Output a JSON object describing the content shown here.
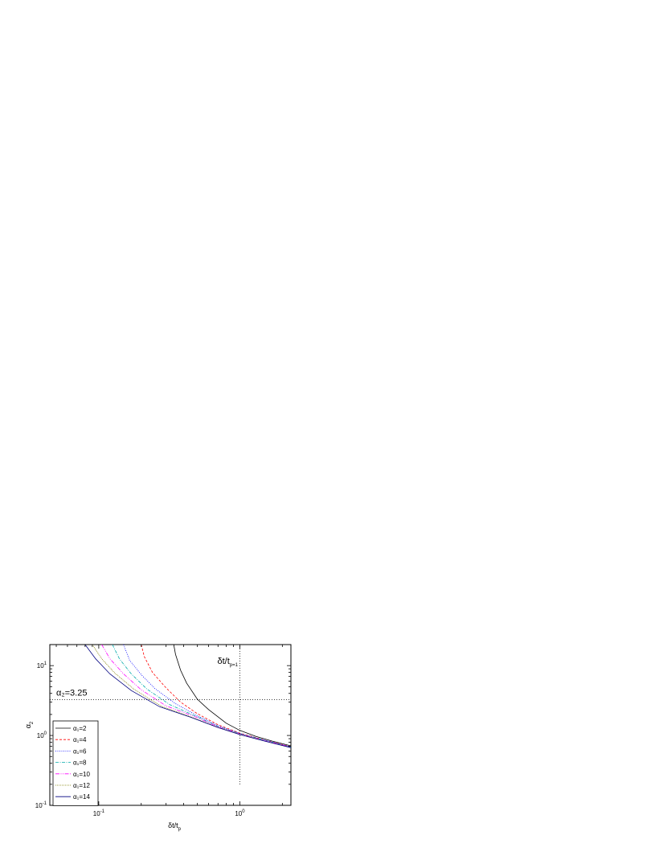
{
  "chart_data": {
    "type": "line",
    "xlabel": "δt/t_p",
    "ylabel": "α_2",
    "x_scale": "log",
    "y_scale": "log",
    "xlim": [
      0.045,
      2.3
    ],
    "ylim": [
      0.1,
      20
    ],
    "x_ticks": [
      {
        "value": 0.1,
        "base": "10",
        "exp": "-1"
      },
      {
        "value": 1,
        "base": "10",
        "exp": "0"
      }
    ],
    "y_ticks": [
      {
        "value": 0.1,
        "base": "10",
        "exp": "-1"
      },
      {
        "value": 1,
        "base": "10",
        "exp": "0"
      },
      {
        "value": 10,
        "base": "10",
        "exp": "1"
      }
    ],
    "grid": false,
    "legend_position": "lower-left",
    "annotations": {
      "hline_label": "α₂=3.25",
      "vline_label": "δt/t_p=1"
    },
    "reference_lines": {
      "horizontal_y": 3.25,
      "vertical_x": 1,
      "vertical_y_range": [
        0.2,
        20
      ]
    },
    "series": [
      {
        "name": "α₁=2",
        "alpha1": 2,
        "color": "#000000",
        "dash": "",
        "x": [
          0.34,
          0.35,
          0.38,
          0.42,
          0.5,
          0.6,
          0.8,
          1.0,
          1.3,
          1.7,
          2.3
        ],
        "y": [
          20,
          14.5,
          8.6,
          5.6,
          3.3,
          2.35,
          1.5,
          1.18,
          0.97,
          0.83,
          0.71
        ]
      },
      {
        "name": "α₁=4",
        "alpha1": 4,
        "color": "#ff0000",
        "dash": "3,2",
        "x": [
          0.2,
          0.21,
          0.24,
          0.3,
          0.38,
          0.5,
          0.7,
          1.0,
          1.5,
          2.3
        ],
        "y": [
          20,
          13.5,
          8.0,
          4.8,
          3.0,
          2.05,
          1.42,
          1.08,
          0.86,
          0.69
        ]
      },
      {
        "name": "α₁=6",
        "alpha1": 6,
        "color": "#0000ff",
        "dash": "1,1.5",
        "x": [
          0.15,
          0.165,
          0.2,
          0.25,
          0.35,
          0.5,
          0.7,
          1.0,
          1.5,
          2.3
        ],
        "y": [
          20,
          12,
          7.4,
          4.7,
          2.85,
          1.92,
          1.38,
          1.07,
          0.86,
          0.69
        ]
      },
      {
        "name": "α₁=8",
        "alpha1": 8,
        "color": "#00aaaa",
        "dash": "4,1.5,1,1.5",
        "x": [
          0.125,
          0.14,
          0.17,
          0.22,
          0.32,
          0.5,
          0.7,
          1.0,
          1.5,
          2.3
        ],
        "y": [
          20,
          12.5,
          7.6,
          4.6,
          2.75,
          1.85,
          1.35,
          1.06,
          0.85,
          0.68
        ]
      },
      {
        "name": "α₁=10",
        "alpha1": 10,
        "color": "#ff00ff",
        "dash": "5,1.5,1,1.5,1,1.5",
        "x": [
          0.105,
          0.12,
          0.15,
          0.2,
          0.3,
          0.5,
          0.7,
          1.0,
          1.5,
          2.3
        ],
        "y": [
          20,
          12.5,
          7.6,
          4.5,
          2.65,
          1.8,
          1.33,
          1.05,
          0.84,
          0.68
        ]
      },
      {
        "name": "α₁=12",
        "alpha1": 12,
        "color": "#808000",
        "dash": "1,1",
        "x": [
          0.09,
          0.105,
          0.13,
          0.18,
          0.28,
          0.45,
          0.7,
          1.0,
          1.5,
          2.3
        ],
        "y": [
          20,
          12.5,
          7.8,
          4.5,
          2.6,
          1.85,
          1.31,
          1.04,
          0.83,
          0.67
        ]
      },
      {
        "name": "α₁=14",
        "alpha1": 14,
        "color": "#000080",
        "dash": "",
        "x": [
          0.08,
          0.095,
          0.12,
          0.17,
          0.27,
          0.45,
          0.7,
          1.0,
          1.5,
          2.3
        ],
        "y": [
          20,
          12.5,
          7.6,
          4.4,
          2.58,
          1.82,
          1.3,
          1.03,
          0.83,
          0.67
        ]
      }
    ]
  }
}
